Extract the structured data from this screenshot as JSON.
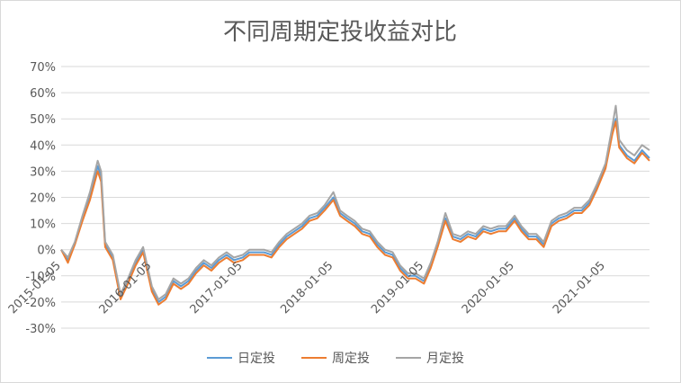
{
  "chart_data": {
    "type": "line",
    "title": "不同周期定投收益对比",
    "xlabel": "",
    "ylabel": "",
    "ylim": [
      -0.3,
      0.7
    ],
    "yticks": [
      "70%",
      "60%",
      "50%",
      "40%",
      "30%",
      "20%",
      "10%",
      "0%",
      "-10%",
      "-20%",
      "-30%"
    ],
    "xticks": [
      "2015-01-05",
      "2016-01-05",
      "2017-01-05",
      "2018-01-05",
      "2019-01-05",
      "2020-01-05",
      "2021-01-05"
    ],
    "x_range": [
      "2015-01-05",
      "2021-07-01"
    ],
    "grid": true,
    "legend_position": "bottom",
    "colors": {
      "日定投": "#5b9bd5",
      "周定投": "#ed7d31",
      "月定投": "#a5a5a5"
    },
    "x": [
      "2015-01-05",
      "2015-02-01",
      "2015-03-01",
      "2015-04-01",
      "2015-05-01",
      "2015-06-01",
      "2015-06-15",
      "2015-07-01",
      "2015-08-01",
      "2015-09-01",
      "2015-10-01",
      "2015-11-01",
      "2015-12-01",
      "2016-01-05",
      "2016-02-01",
      "2016-03-01",
      "2016-04-01",
      "2016-05-01",
      "2016-06-01",
      "2016-07-01",
      "2016-08-01",
      "2016-09-01",
      "2016-10-01",
      "2016-11-01",
      "2016-12-01",
      "2017-01-05",
      "2017-02-01",
      "2017-03-01",
      "2017-04-01",
      "2017-05-01",
      "2017-06-01",
      "2017-07-01",
      "2017-08-01",
      "2017-09-01",
      "2017-10-01",
      "2017-11-01",
      "2017-12-01",
      "2018-01-05",
      "2018-02-01",
      "2018-03-01",
      "2018-04-01",
      "2018-05-01",
      "2018-06-01",
      "2018-07-01",
      "2018-08-01",
      "2018-09-01",
      "2018-10-01",
      "2018-11-01",
      "2018-12-01",
      "2019-01-05",
      "2019-02-01",
      "2019-03-01",
      "2019-04-01",
      "2019-05-01",
      "2019-06-01",
      "2019-07-01",
      "2019-08-01",
      "2019-09-01",
      "2019-10-01",
      "2019-11-01",
      "2019-12-01",
      "2020-01-05",
      "2020-02-01",
      "2020-03-01",
      "2020-04-01",
      "2020-05-01",
      "2020-06-01",
      "2020-07-01",
      "2020-08-01",
      "2020-09-01",
      "2020-10-01",
      "2020-11-01",
      "2020-12-01",
      "2021-01-05",
      "2021-02-01",
      "2021-02-15",
      "2021-03-01",
      "2021-04-01",
      "2021-05-01",
      "2021-06-01",
      "2021-07-01"
    ],
    "series": [
      {
        "name": "日定投",
        "values": [
          0.0,
          -0.04,
          0.02,
          0.12,
          0.2,
          0.32,
          0.28,
          0.02,
          -0.03,
          -0.18,
          -0.12,
          -0.05,
          0.0,
          -0.15,
          -0.2,
          -0.18,
          -0.12,
          -0.14,
          -0.12,
          -0.08,
          -0.05,
          -0.07,
          -0.04,
          -0.02,
          -0.04,
          -0.03,
          -0.01,
          -0.01,
          -0.01,
          -0.02,
          0.02,
          0.05,
          0.07,
          0.09,
          0.12,
          0.13,
          0.16,
          0.2,
          0.14,
          0.12,
          0.1,
          0.07,
          0.06,
          0.02,
          -0.01,
          -0.02,
          -0.07,
          -0.1,
          -0.1,
          -0.12,
          -0.06,
          0.02,
          0.12,
          0.05,
          0.04,
          0.06,
          0.05,
          0.08,
          0.07,
          0.08,
          0.08,
          0.12,
          0.08,
          0.05,
          0.05,
          0.02,
          0.1,
          0.12,
          0.13,
          0.15,
          0.15,
          0.18,
          0.24,
          0.32,
          0.45,
          0.5,
          0.4,
          0.36,
          0.34,
          0.38,
          0.35
        ]
      },
      {
        "name": "周定投",
        "values": [
          0.0,
          -0.05,
          0.02,
          0.11,
          0.19,
          0.3,
          0.26,
          0.01,
          -0.04,
          -0.19,
          -0.13,
          -0.06,
          -0.01,
          -0.16,
          -0.21,
          -0.19,
          -0.13,
          -0.15,
          -0.13,
          -0.09,
          -0.06,
          -0.08,
          -0.05,
          -0.03,
          -0.05,
          -0.04,
          -0.02,
          -0.02,
          -0.02,
          -0.03,
          0.01,
          0.04,
          0.06,
          0.08,
          0.11,
          0.12,
          0.15,
          0.19,
          0.13,
          0.11,
          0.09,
          0.06,
          0.05,
          0.01,
          -0.02,
          -0.03,
          -0.08,
          -0.11,
          -0.11,
          -0.13,
          -0.07,
          0.01,
          0.11,
          0.04,
          0.03,
          0.05,
          0.04,
          0.07,
          0.06,
          0.07,
          0.07,
          0.11,
          0.07,
          0.04,
          0.04,
          0.01,
          0.09,
          0.11,
          0.12,
          0.14,
          0.14,
          0.17,
          0.23,
          0.31,
          0.44,
          0.49,
          0.39,
          0.35,
          0.33,
          0.37,
          0.34
        ]
      },
      {
        "name": "月定投",
        "values": [
          0.0,
          -0.03,
          0.03,
          0.13,
          0.22,
          0.34,
          0.3,
          0.03,
          -0.02,
          -0.17,
          -0.11,
          -0.04,
          0.01,
          -0.14,
          -0.19,
          -0.17,
          -0.11,
          -0.13,
          -0.11,
          -0.07,
          -0.04,
          -0.06,
          -0.03,
          -0.01,
          -0.03,
          -0.02,
          0.0,
          0.0,
          0.0,
          -0.01,
          0.03,
          0.06,
          0.08,
          0.1,
          0.13,
          0.14,
          0.17,
          0.22,
          0.15,
          0.13,
          0.11,
          0.08,
          0.07,
          0.03,
          0.0,
          -0.01,
          -0.06,
          -0.09,
          -0.09,
          -0.11,
          -0.05,
          0.03,
          0.14,
          0.06,
          0.05,
          0.07,
          0.06,
          0.09,
          0.08,
          0.09,
          0.09,
          0.13,
          0.09,
          0.06,
          0.06,
          0.03,
          0.11,
          0.13,
          0.14,
          0.16,
          0.16,
          0.19,
          0.25,
          0.33,
          0.47,
          0.55,
          0.42,
          0.38,
          0.36,
          0.4,
          0.38
        ]
      }
    ]
  }
}
